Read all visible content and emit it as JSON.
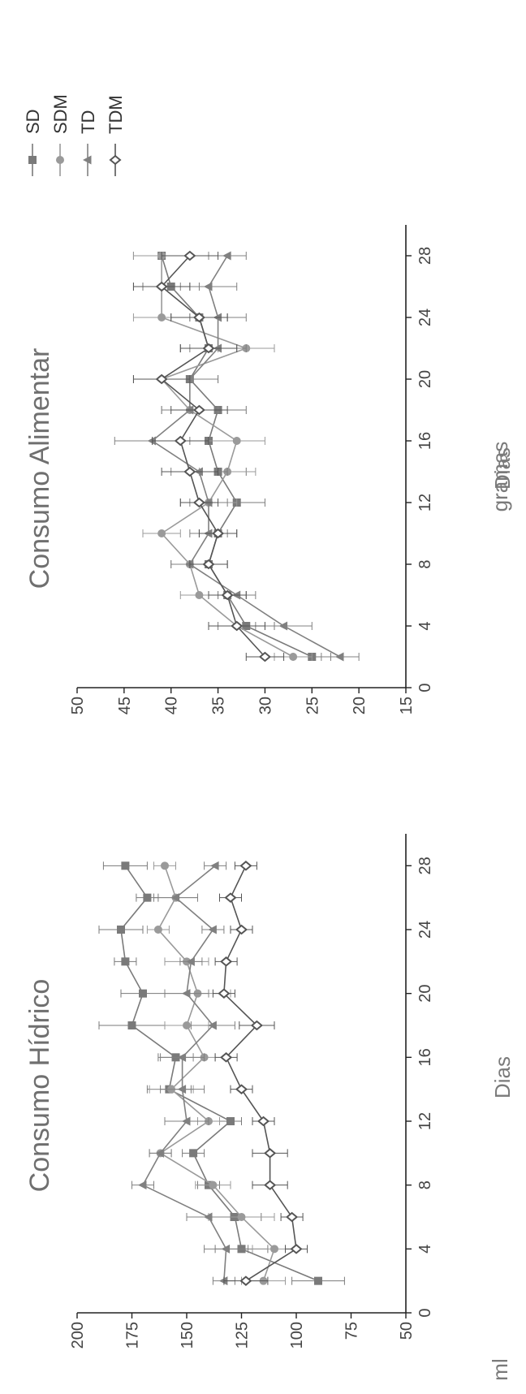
{
  "legend": [
    {
      "name": "SD",
      "marker": "square",
      "color": "#7a7a7a"
    },
    {
      "name": "SDM",
      "marker": "circle",
      "color": "#9a9a9a"
    },
    {
      "name": "TD",
      "marker": "triangle",
      "color": "#808080"
    },
    {
      "name": "TDM",
      "marker": "diamond",
      "color": "#555555"
    }
  ],
  "chart_data": [
    {
      "type": "line",
      "title": "Consumo Hídrico",
      "xlabel": "Dias",
      "ylabel": "ml",
      "xlim": [
        0,
        30
      ],
      "ylim": [
        50,
        200
      ],
      "xticks": [
        0,
        4,
        8,
        12,
        16,
        20,
        24,
        28
      ],
      "yticks": [
        50,
        75,
        100,
        125,
        150,
        175,
        200
      ],
      "x": [
        2,
        4,
        6,
        8,
        10,
        12,
        14,
        16,
        18,
        20,
        22,
        24,
        26,
        28
      ],
      "series": [
        {
          "name": "SD",
          "values": [
            90,
            125,
            128,
            140,
            147,
            130,
            158,
            155,
            175,
            170,
            178,
            180,
            168,
            178
          ],
          "errors": [
            12,
            12,
            12,
            5,
            5,
            5,
            10,
            8,
            15,
            10,
            5,
            10,
            5,
            10
          ]
        },
        {
          "name": "SDM",
          "values": [
            115,
            110,
            125,
            138,
            162,
            140,
            157,
            142,
            150,
            145,
            150,
            163,
            155,
            160
          ],
          "errors": [
            10,
            10,
            15,
            8,
            5,
            5,
            10,
            5,
            10,
            15,
            10,
            5,
            10,
            5
          ]
        },
        {
          "name": "TD",
          "values": [
            133,
            132,
            140,
            170,
            162,
            150,
            152,
            152,
            138,
            150,
            148,
            138,
            155,
            137
          ],
          "errors": [
            5,
            10,
            10,
            5,
            5,
            10,
            10,
            10,
            10,
            10,
            5,
            5,
            10,
            5
          ]
        },
        {
          "name": "TDM",
          "values": [
            123,
            100,
            102,
            112,
            112,
            115,
            125,
            132,
            118,
            133,
            132,
            125,
            130,
            123
          ],
          "errors": [
            10,
            5,
            5,
            8,
            8,
            5,
            5,
            5,
            8,
            5,
            5,
            5,
            5,
            5
          ]
        }
      ]
    },
    {
      "type": "line",
      "title": "Consumo Alimentar",
      "xlabel": "Dias",
      "ylabel": "gramas",
      "xlim": [
        0,
        30
      ],
      "ylim": [
        15,
        50
      ],
      "xticks": [
        0,
        4,
        8,
        12,
        16,
        20,
        24,
        28
      ],
      "yticks": [
        15,
        20,
        25,
        30,
        35,
        40,
        45,
        50
      ],
      "x": [
        2,
        4,
        6,
        8,
        10,
        12,
        14,
        16,
        18,
        20,
        22,
        24,
        26,
        28
      ],
      "series": [
        {
          "name": "SD",
          "values": [
            25,
            32,
            34,
            36,
            35,
            33,
            35,
            36,
            35,
            38,
            36,
            37,
            40,
            41
          ],
          "errors": [
            2,
            3,
            2,
            2,
            2,
            3,
            3,
            3,
            3,
            3,
            3,
            3,
            3,
            3
          ]
        },
        {
          "name": "SDM",
          "values": [
            27,
            33,
            37,
            38,
            41,
            36,
            34,
            33,
            38,
            41,
            32,
            41,
            41,
            41
          ],
          "errors": [
            2,
            3,
            2,
            2,
            2,
            3,
            3,
            3,
            3,
            3,
            3,
            3,
            3,
            3
          ]
        },
        {
          "name": "TD",
          "values": [
            22,
            28,
            33,
            38,
            36,
            36,
            37,
            42,
            38,
            38,
            35,
            35,
            36,
            34
          ],
          "errors": [
            2,
            3,
            2,
            2,
            2,
            2,
            3,
            4,
            3,
            3,
            3,
            3,
            3,
            2
          ]
        },
        {
          "name": "TDM",
          "values": [
            30,
            33,
            34,
            36,
            35,
            37,
            38,
            39,
            37,
            41,
            36,
            37,
            41,
            38
          ],
          "errors": [
            2,
            3,
            2,
            2,
            2,
            2,
            3,
            3,
            3,
            3,
            3,
            3,
            3,
            3
          ]
        }
      ]
    }
  ]
}
